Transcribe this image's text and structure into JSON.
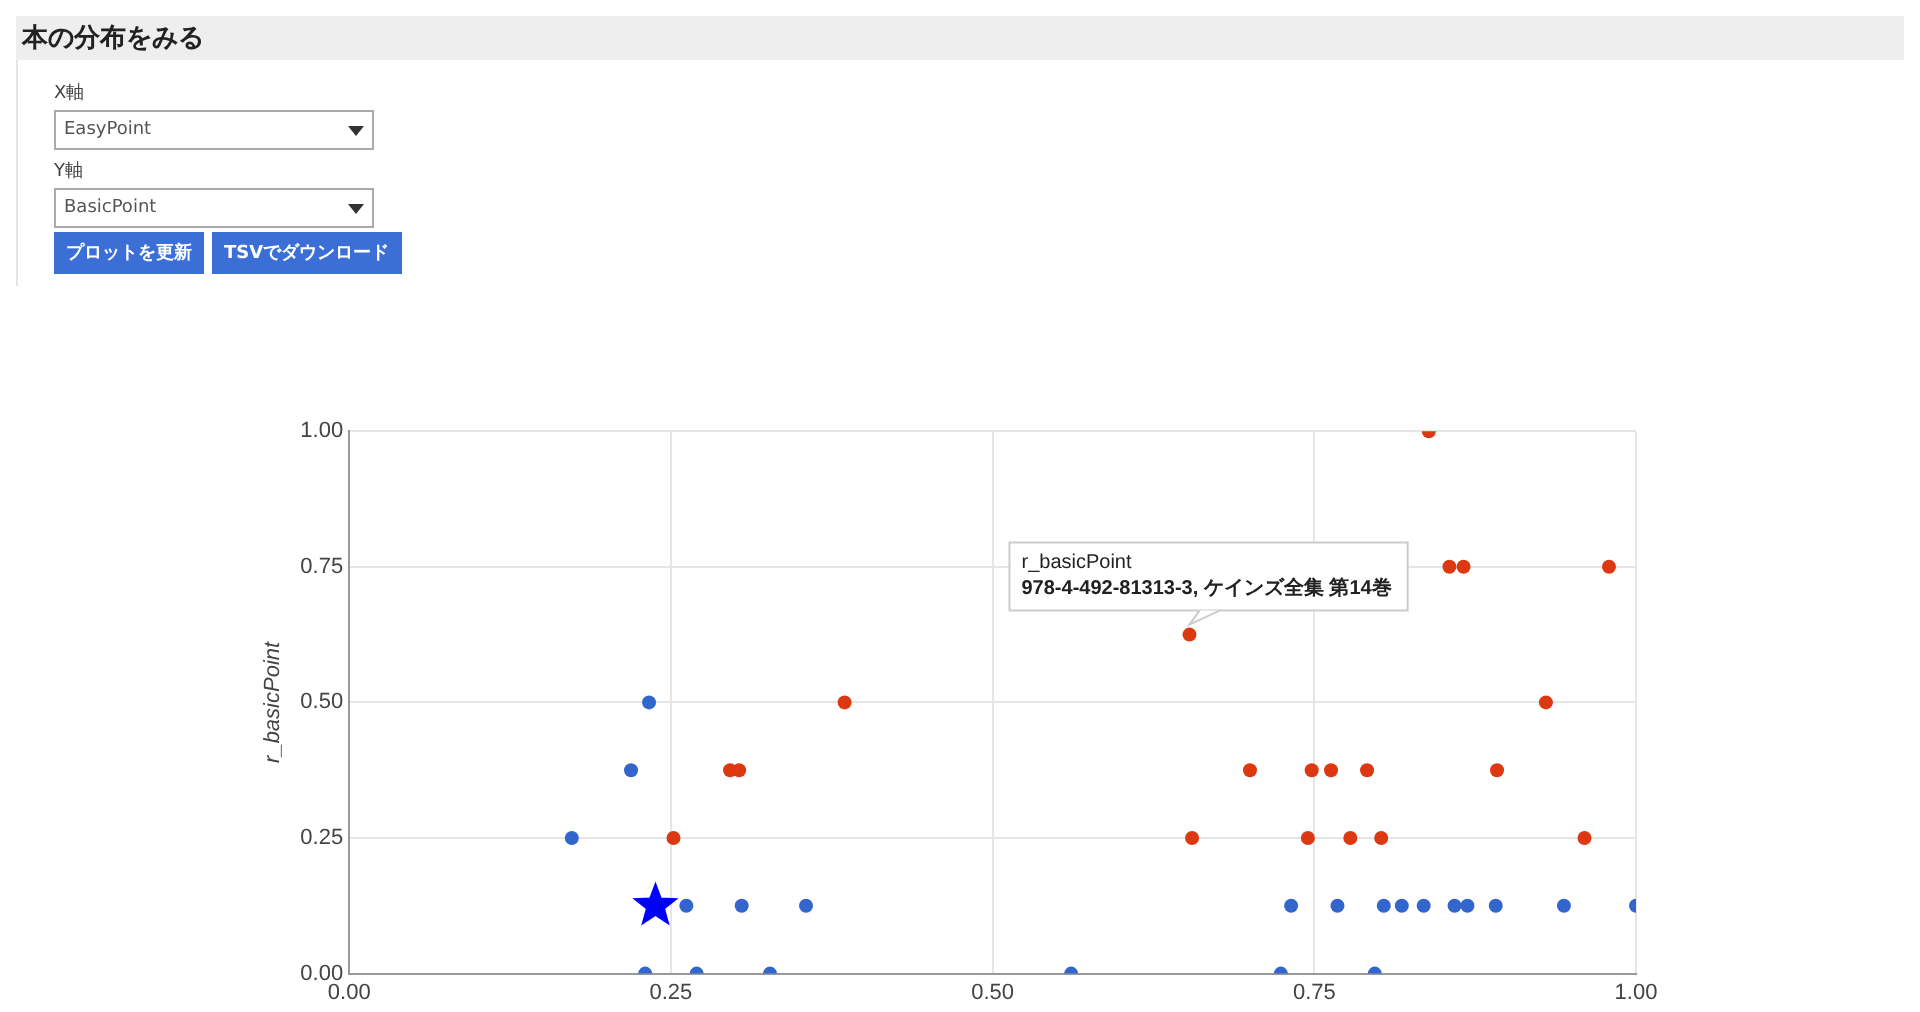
{
  "chart_data": {
    "type": "scatter",
    "title": "本の分布をみる",
    "ylabel": "r_basicPoint",
    "annotations": [
      "X軸",
      "EasyPoint",
      "Y軸",
      "BasicPoint",
      "プロットを更新",
      "TSVでダウンロード",
      {
        "text": "r_basicPoint\n978-4-492-81313-3, ケインズ全集 第14巻",
        "x": 0.653,
        "y": 0.625
      }
    ],
    "xlim": [
      0,
      1
    ],
    "xticks": [
      {
        "value": 0,
        "label": "0.00"
      },
      {
        "value": 0.25,
        "label": "0.25"
      },
      {
        "value": 0.5,
        "label": "0.50"
      },
      {
        "value": 0.75,
        "label": "0.75"
      },
      {
        "value": 1,
        "label": "1.00"
      }
    ],
    "ylim": [
      0,
      1
    ],
    "yticks": [
      {
        "value": 0,
        "label": "0.00"
      },
      {
        "value": 0.25,
        "label": "0.25"
      },
      {
        "value": 0.5,
        "label": "0.50"
      },
      {
        "value": 0.75,
        "label": "0.75"
      },
      {
        "value": 1,
        "label": "1.00"
      }
    ],
    "grid": true,
    "legend": false,
    "marker": "circle",
    "series": [
      {
        "color": "#3366cc",
        "x": [
          0.233,
          0.219,
          0.173,
          0.262,
          0.305,
          0.355,
          0.732,
          0.768,
          0.804,
          0.818,
          0.835,
          0.859,
          0.869,
          0.891,
          0.944,
          1.0,
          0.23,
          0.27,
          0.327,
          0.561,
          0.724,
          0.797
        ],
        "values": [
          0.5,
          0.375,
          0.25,
          0.125,
          0.125,
          0.125,
          0.125,
          0.125,
          0.125,
          0.125,
          0.125,
          0.125,
          0.125,
          0.125,
          0.125,
          0.125,
          0,
          0,
          0,
          0,
          0,
          0
        ]
      },
      {
        "color": "#dc3912",
        "x": [
          0.385,
          0.296,
          0.303,
          0.252,
          0.839,
          0.855,
          0.866,
          0.979,
          0.653,
          0.93,
          0.7,
          0.748,
          0.763,
          0.791,
          0.892,
          0.655,
          0.745,
          0.778,
          0.802,
          0.96
        ],
        "values": [
          0.5,
          0.375,
          0.375,
          0.25,
          1,
          0.75,
          0.75,
          0.75,
          0.625,
          0.5,
          0.375,
          0.375,
          0.375,
          0.375,
          0.375,
          0.25,
          0.25,
          0.25,
          0.25,
          0.25
        ]
      },
      {
        "color": "#0000ff",
        "marker": "star",
        "x": [
          0.238
        ],
        "values": [
          0.125
        ]
      }
    ]
  }
}
